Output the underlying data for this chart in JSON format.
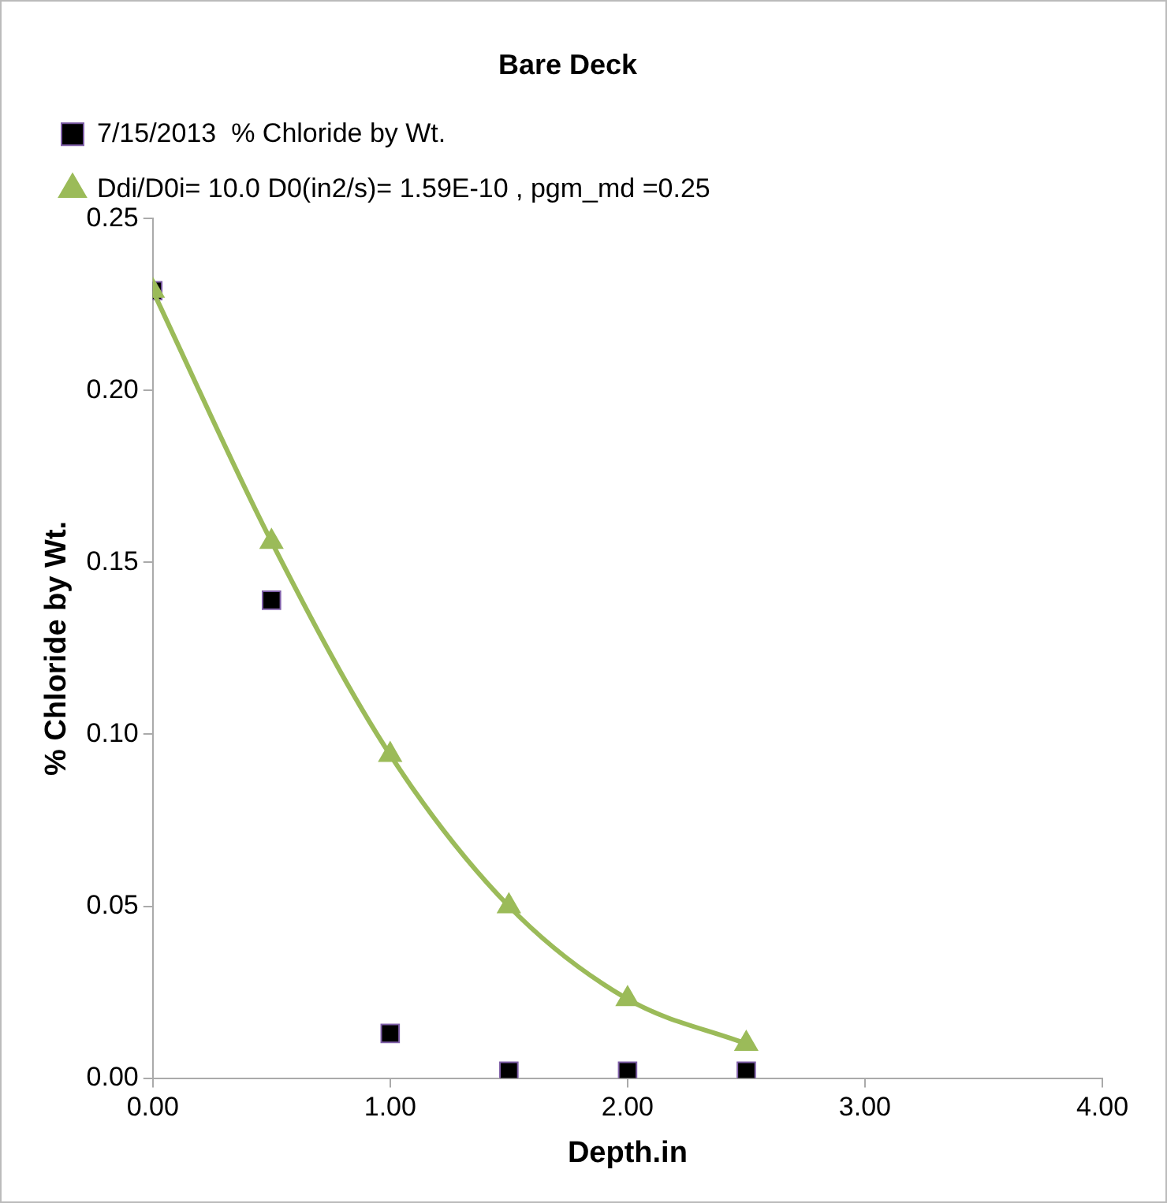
{
  "chart_data": {
    "type": "scatter",
    "title": "Bare Deck",
    "xlabel": "Depth.in",
    "ylabel": "% Chloride by Wt.",
    "x": [
      0,
      0.5,
      1,
      1.5,
      2,
      2.5
    ],
    "series": [
      {
        "name": "7/15/2013  % Chloride by Wt.",
        "color": "#000000",
        "marker": "square",
        "values": [
          0.229,
          0.139,
          0.013,
          0.002,
          0.002,
          0.002
        ]
      },
      {
        "name": "Ddi/D0i= 10.0 D0(in2/s)= 1.59E-10 , pgm_md =0.25",
        "type": "line",
        "color": "#9bbb59",
        "marker": "triangle",
        "values": [
          0.229,
          0.156,
          0.094,
          0.05,
          0.023,
          0.01
        ]
      }
    ],
    "xlim": [
      0,
      4
    ],
    "xticks": [
      {
        "value": 0,
        "label": "0.00"
      },
      {
        "value": 1,
        "label": "1.00"
      },
      {
        "value": 2,
        "label": "2.00"
      },
      {
        "value": 3,
        "label": "3.00"
      },
      {
        "value": 4,
        "label": "4.00"
      }
    ],
    "ylim": [
      0,
      0.25
    ],
    "yticks": [
      {
        "value": 0,
        "label": "0.00"
      },
      {
        "value": 0.05,
        "label": "0.05"
      },
      {
        "value": 0.1,
        "label": "0.10"
      },
      {
        "value": 0.15,
        "label": "0.15"
      },
      {
        "value": 0.2,
        "label": "0.20"
      },
      {
        "value": 0.25,
        "label": "0.25"
      }
    ],
    "grid": false,
    "legend": "top"
  }
}
